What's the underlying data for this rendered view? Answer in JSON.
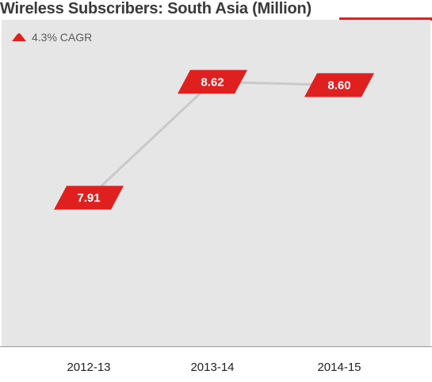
{
  "colors": {
    "accent": "#e0201f",
    "plot_bg": "#e6e6e6",
    "line": "#c9c9c9"
  },
  "legend": {
    "icon": "triangle-up-icon",
    "label": "4.3% CAGR"
  },
  "chart_data": {
    "type": "line",
    "title": "Wireless Subscribers: South Asia (Million)",
    "categories": [
      "2012-13",
      "2013-14",
      "2014-15"
    ],
    "values": [
      7.91,
      8.62,
      8.6
    ],
    "data_labels": [
      "7.91",
      "8.62",
      "8.60"
    ],
    "annotation": "4.3% CAGR",
    "ylim": [
      7.0,
      9.0
    ],
    "grid": false,
    "legend_placement": "top-left"
  }
}
